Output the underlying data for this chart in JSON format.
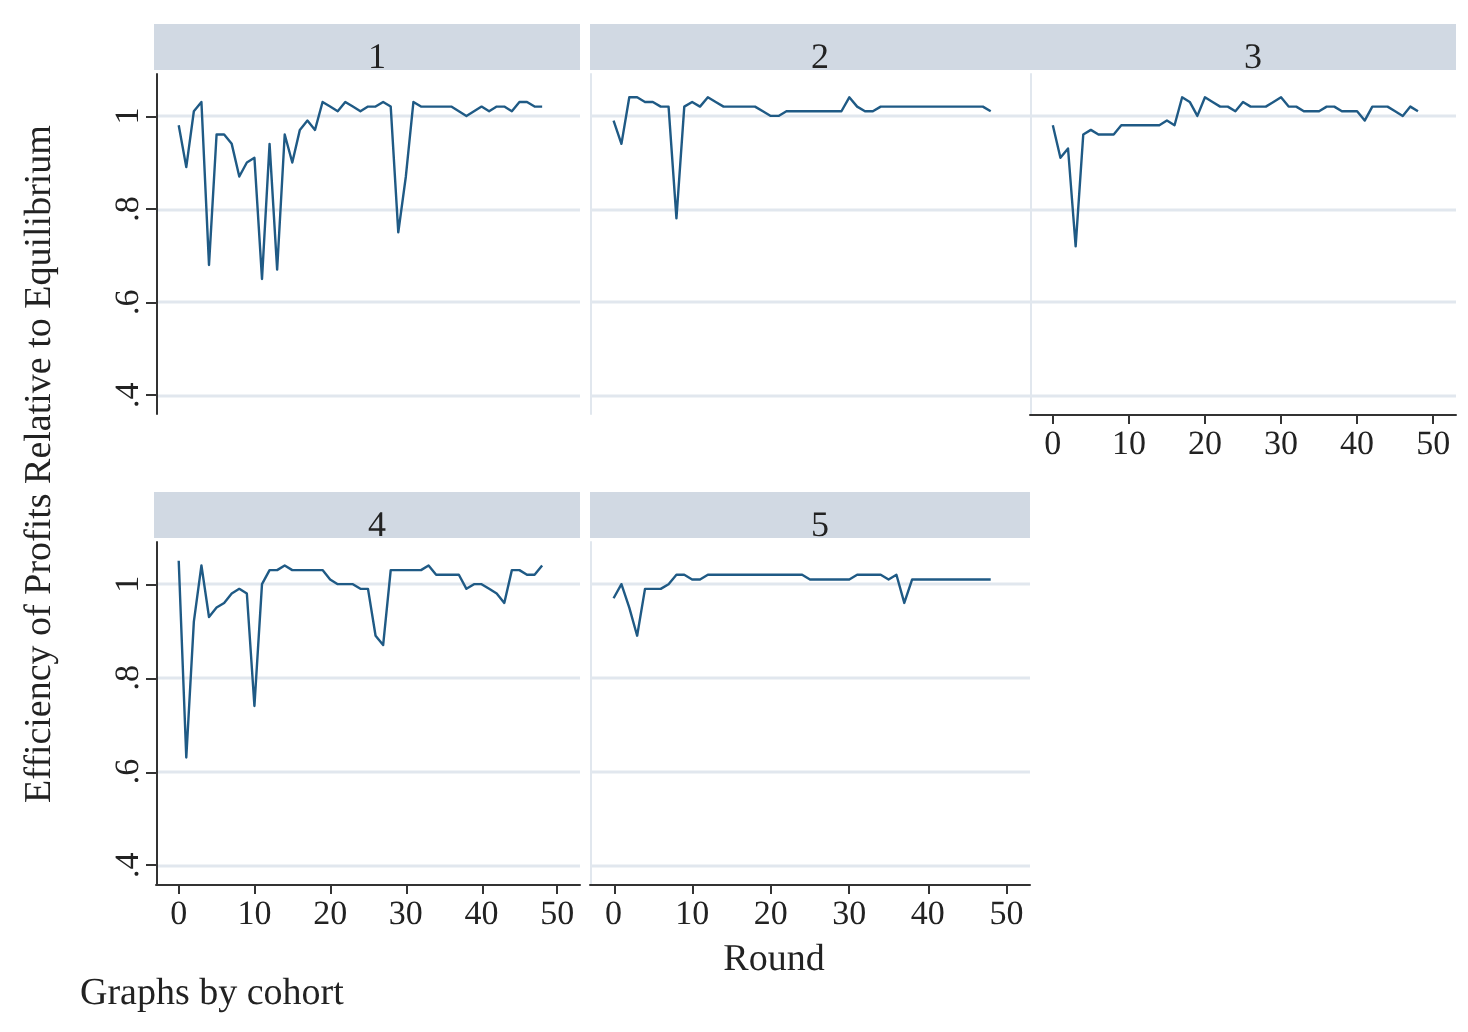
{
  "chart_data": [
    {
      "type": "line",
      "title": "1",
      "ylabel": "Efficiency of Profits Relative to Equilibrium",
      "color": "#1f5a85",
      "grid": "y",
      "tick_labels": "y",
      "xlim": [
        -3,
        53
      ],
      "xticks": [
        0,
        10,
        20,
        30,
        40,
        50
      ],
      "ylim": [
        0.36,
        1.09
      ],
      "yticks": [
        {
          "value": 0.4,
          "label": ".4"
        },
        {
          "value": 0.6,
          "label": ".6"
        },
        {
          "value": 0.8,
          "label": ".8"
        },
        {
          "value": 1,
          "label": "1"
        }
      ],
      "x": [
        0,
        1,
        2,
        3,
        4,
        5,
        6,
        7,
        8,
        9,
        10,
        11,
        12,
        13,
        14,
        15,
        16,
        17,
        18,
        19,
        20,
        21,
        22,
        23,
        24,
        25,
        26,
        27,
        28,
        29,
        30,
        31,
        32,
        33,
        34,
        35,
        36,
        37,
        38,
        39,
        40,
        41,
        42,
        43,
        44,
        45,
        46,
        47,
        48
      ],
      "values": [
        0.98,
        0.89,
        1.01,
        1.03,
        0.68,
        0.96,
        0.96,
        0.94,
        0.87,
        0.9,
        0.91,
        0.65,
        0.94,
        0.67,
        0.96,
        0.9,
        0.97,
        0.99,
        0.97,
        1.03,
        1.02,
        1.01,
        1.03,
        1.02,
        1.01,
        1.02,
        1.02,
        1.03,
        1.02,
        0.75,
        0.87,
        1.03,
        1.02,
        1.02,
        1.02,
        1.02,
        1.02,
        1.01,
        1.0,
        1.01,
        1.02,
        1.01,
        1.02,
        1.02,
        1.01,
        1.03,
        1.03,
        1.02,
        1.02
      ]
    },
    {
      "type": "line",
      "title": "2",
      "color": "#1f5a85",
      "grid": "y",
      "tick_labels": false,
      "xlim": [
        -3,
        53
      ],
      "xticks": [
        0,
        10,
        20,
        30,
        40,
        50
      ],
      "ylim": [
        0.36,
        1.09
      ],
      "yticks": [
        {
          "value": 0.4,
          "label": null
        },
        {
          "value": 0.6,
          "label": null
        },
        {
          "value": 0.8,
          "label": null
        },
        {
          "value": 1,
          "label": null
        }
      ],
      "x": [
        0,
        1,
        2,
        3,
        4,
        5,
        6,
        7,
        8,
        9,
        10,
        11,
        12,
        13,
        14,
        15,
        16,
        17,
        18,
        19,
        20,
        21,
        22,
        23,
        24,
        25,
        26,
        27,
        28,
        29,
        30,
        31,
        32,
        33,
        34,
        35,
        36,
        37,
        38,
        39,
        40,
        41,
        42,
        43,
        44,
        45,
        46,
        47,
        48
      ],
      "values": [
        0.99,
        0.94,
        1.04,
        1.04,
        1.03,
        1.03,
        1.02,
        1.02,
        0.78,
        1.02,
        1.03,
        1.02,
        1.04,
        1.03,
        1.02,
        1.02,
        1.02,
        1.02,
        1.02,
        1.01,
        1.0,
        1.0,
        1.01,
        1.01,
        1.01,
        1.01,
        1.01,
        1.01,
        1.01,
        1.01,
        1.04,
        1.02,
        1.01,
        1.01,
        1.02,
        1.02,
        1.02,
        1.02,
        1.02,
        1.02,
        1.02,
        1.02,
        1.02,
        1.02,
        1.02,
        1.02,
        1.02,
        1.02,
        1.01
      ]
    },
    {
      "type": "line",
      "title": "3",
      "color": "#1f5a85",
      "grid": "y",
      "tick_labels": "x",
      "xlim": [
        -3,
        53
      ],
      "xticks": [
        0,
        10,
        20,
        30,
        40,
        50
      ],
      "ylim": [
        0.36,
        1.09
      ],
      "yticks": [
        {
          "value": 0.4,
          "label": null
        },
        {
          "value": 0.6,
          "label": null
        },
        {
          "value": 0.8,
          "label": null
        },
        {
          "value": 1,
          "label": null
        }
      ],
      "x": [
        0,
        1,
        2,
        3,
        4,
        5,
        6,
        7,
        8,
        9,
        10,
        11,
        12,
        13,
        14,
        15,
        16,
        17,
        18,
        19,
        20,
        21,
        22,
        23,
        24,
        25,
        26,
        27,
        28,
        29,
        30,
        31,
        32,
        33,
        34,
        35,
        36,
        37,
        38,
        39,
        40,
        41,
        42,
        43,
        44,
        45,
        46,
        47,
        48
      ],
      "values": [
        0.98,
        0.91,
        0.93,
        0.72,
        0.96,
        0.97,
        0.96,
        0.96,
        0.96,
        0.98,
        0.98,
        0.98,
        0.98,
        0.98,
        0.98,
        0.99,
        0.98,
        1.04,
        1.03,
        1.0,
        1.04,
        1.03,
        1.02,
        1.02,
        1.01,
        1.03,
        1.02,
        1.02,
        1.02,
        1.03,
        1.04,
        1.02,
        1.02,
        1.01,
        1.01,
        1.01,
        1.02,
        1.02,
        1.01,
        1.01,
        1.01,
        0.99,
        1.02,
        1.02,
        1.02,
        1.01,
        1.0,
        1.02,
        1.01
      ]
    },
    {
      "type": "line",
      "title": "4",
      "annotations": [
        "Graphs by cohort"
      ],
      "color": "#1f5a85",
      "grid": "y",
      "xlim": [
        -3,
        53
      ],
      "xticks": [
        0,
        10,
        20,
        30,
        40,
        50
      ],
      "ylim": [
        0.36,
        1.09
      ],
      "yticks": [
        {
          "value": 0.4,
          "label": ".4"
        },
        {
          "value": 0.6,
          "label": ".6"
        },
        {
          "value": 0.8,
          "label": ".8"
        },
        {
          "value": 1,
          "label": "1"
        }
      ],
      "x": [
        0,
        1,
        2,
        3,
        4,
        5,
        6,
        7,
        8,
        9,
        10,
        11,
        12,
        13,
        14,
        15,
        16,
        17,
        18,
        19,
        20,
        21,
        22,
        23,
        24,
        25,
        26,
        27,
        28,
        29,
        30,
        31,
        32,
        33,
        34,
        35,
        36,
        37,
        38,
        39,
        40,
        41,
        42,
        43,
        44,
        45,
        46,
        47,
        48
      ],
      "values": [
        1.05,
        0.63,
        0.92,
        1.04,
        0.93,
        0.95,
        0.96,
        0.98,
        0.99,
        0.98,
        0.74,
        1.0,
        1.03,
        1.03,
        1.04,
        1.03,
        1.03,
        1.03,
        1.03,
        1.03,
        1.01,
        1.0,
        1.0,
        1.0,
        0.99,
        0.99,
        0.89,
        0.87,
        1.03,
        1.03,
        1.03,
        1.03,
        1.03,
        1.04,
        1.02,
        1.02,
        1.02,
        1.02,
        0.99,
        1.0,
        1.0,
        0.99,
        0.98,
        0.96,
        1.03,
        1.03,
        1.02,
        1.02,
        1.04
      ]
    },
    {
      "type": "line",
      "title": "5",
      "xlabel": "Round",
      "color": "#1f5a85",
      "grid": "y",
      "tick_labels": "x",
      "xlim": [
        -3,
        53
      ],
      "xticks": [
        0,
        10,
        20,
        30,
        40,
        50
      ],
      "ylim": [
        0.36,
        1.09
      ],
      "yticks": [
        {
          "value": 0.4,
          "label": null
        },
        {
          "value": 0.6,
          "label": null
        },
        {
          "value": 0.8,
          "label": null
        },
        {
          "value": 1,
          "label": null
        }
      ],
      "x": [
        0,
        1,
        2,
        3,
        4,
        5,
        6,
        7,
        8,
        9,
        10,
        11,
        12,
        13,
        14,
        15,
        16,
        17,
        18,
        19,
        20,
        21,
        22,
        23,
        24,
        25,
        26,
        27,
        28,
        29,
        30,
        31,
        32,
        33,
        34,
        35,
        36,
        37,
        38,
        39,
        40,
        41,
        42,
        43,
        44,
        45,
        46,
        47,
        48
      ],
      "values": [
        0.97,
        1.0,
        0.95,
        0.89,
        0.99,
        0.99,
        0.99,
        1.0,
        1.02,
        1.02,
        1.01,
        1.01,
        1.02,
        1.02,
        1.02,
        1.02,
        1.02,
        1.02,
        1.02,
        1.02,
        1.02,
        1.02,
        1.02,
        1.02,
        1.02,
        1.01,
        1.01,
        1.01,
        1.01,
        1.01,
        1.01,
        1.02,
        1.02,
        1.02,
        1.02,
        1.01,
        1.02,
        0.96,
        1.01,
        1.01,
        1.01,
        1.01,
        1.01,
        1.01,
        1.01,
        1.01,
        1.01,
        1.01,
        1.01
      ]
    }
  ]
}
